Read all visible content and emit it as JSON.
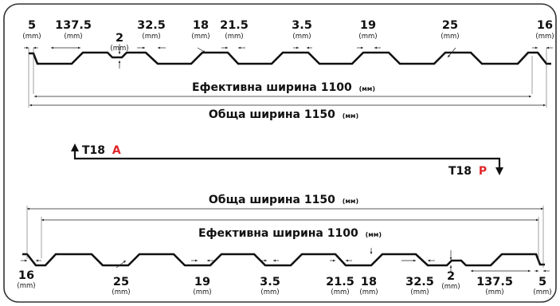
{
  "top": {
    "dimensions": [
      {
        "id": "edge-left",
        "value": "5",
        "unit": "(mm)"
      },
      {
        "id": "crest-width",
        "value": "137.5",
        "unit": "(mm)"
      },
      {
        "id": "stiffener-depth",
        "value": "2",
        "unit": "(mm)"
      },
      {
        "id": "valley-bottom",
        "value": "32.5",
        "unit": "(mm)"
      },
      {
        "id": "rib-height",
        "value": "18",
        "unit": "(mm)"
      },
      {
        "id": "valley-top",
        "value": "21.5",
        "unit": "(mm)"
      },
      {
        "id": "offset-a",
        "value": "3.5",
        "unit": "(mm)"
      },
      {
        "id": "offset-b",
        "value": "19",
        "unit": "(mm)"
      },
      {
        "id": "slope",
        "value": "25",
        "unit": "(mm)"
      },
      {
        "id": "edge-right",
        "value": "16",
        "unit": "(mm)"
      }
    ],
    "effective_width": {
      "label": "Ефективна ширина 1100",
      "unit": "(мм)"
    },
    "total_width": {
      "label": "Обща ширина 1150",
      "unit": "(мм)"
    }
  },
  "direction": {
    "start": {
      "prefix": "T18",
      "letter": "A"
    },
    "end": {
      "prefix": "T18",
      "letter": "P"
    },
    "accent": "#e0262a"
  },
  "bottom": {
    "total_width": {
      "label": "Обща ширина 1150",
      "unit": "(мм)"
    },
    "effective_width": {
      "label": "Ефективна ширина 1100",
      "unit": "(мм)"
    },
    "dimensions": [
      {
        "id": "edge-left",
        "value": "16",
        "unit": "(mm)"
      },
      {
        "id": "slope",
        "value": "25",
        "unit": "(mm)"
      },
      {
        "id": "offset-b",
        "value": "19",
        "unit": "(mm)"
      },
      {
        "id": "offset-a",
        "value": "3.5",
        "unit": "(mm)"
      },
      {
        "id": "valley-top",
        "value": "21.5",
        "unit": "(mm)"
      },
      {
        "id": "rib-height",
        "value": "18",
        "unit": "(mm)"
      },
      {
        "id": "valley-bottom",
        "value": "32.5",
        "unit": "(mm)"
      },
      {
        "id": "stiffener-depth",
        "value": "2",
        "unit": "(mm)"
      },
      {
        "id": "crest-width",
        "value": "137.5",
        "unit": "(mm)"
      },
      {
        "id": "edge-right",
        "value": "5",
        "unit": "(mm)"
      }
    ]
  }
}
